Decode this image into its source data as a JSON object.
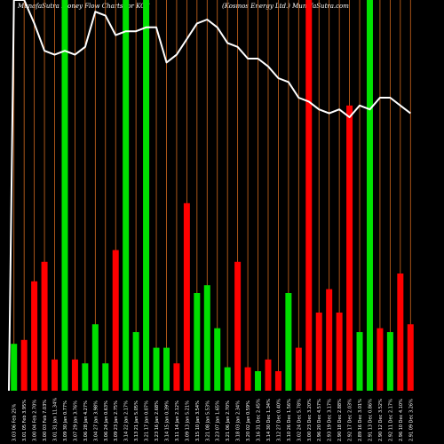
{
  "header": {
    "left": "MunafaSutra  Money Flow  Charts for KOS",
    "right": "(Kosmos Energy Ltd.) MunafaSutra.com"
  },
  "colors": {
    "background": "#000000",
    "up": "#00e000",
    "down": "#ff0000",
    "price_line": "#ffffff",
    "grid": "#d2691e"
  },
  "chart_data": {
    "type": "bar",
    "ylim": [
      0,
      100
    ],
    "categories": [
      "Thu 06 Feb 2025",
      "Wed 05 Feb 2025",
      "Tue 04 Feb 2025",
      "Mon 03 Feb 2025",
      "Fri 31 Jan 2025",
      "Thu 30 Jan 2025",
      "Wed 29 Jan 2025",
      "Tue 28 Jan 2025",
      "Mon 27 Jan 2025",
      "Fri 24 Jan 2025",
      "Thu 23 Jan 2025",
      "Wed 22 Jan 2025",
      "Tue 21 Jan 2025",
      "Fri 17 Jan 2025",
      "Thu 16 Jan 2025",
      "Wed 15 Jan 2025",
      "Tue 14 Jan 2025",
      "Mon 13 Jan 2025",
      "Fri 10 Jan 2025",
      "Wed 08 Jan 2025",
      "Tue 07 Jan 2025",
      "Mon 06 Jan 2025",
      "Fri 03 Jan 2025",
      "Thu 02 Jan 2025",
      "Tue 31 Dec 2024",
      "Mon 30 Dec 2024",
      "Fri 27 Dec 2024",
      "Thu 26 Dec 2024",
      "Tue 24 Dec 2024",
      "Mon 23 Dec 2024",
      "Fri 20 Dec 2024",
      "Thu 19 Dec 2024",
      "Wed 18 Dec 2024",
      "Tue 17 Dec 2024",
      "Mon 16 Dec 2024",
      "Fri 13 Dec 2024",
      "Thu 12 Dec 2024",
      "Wed 11 Dec 2024",
      "Tue 10 Dec 2024",
      "Mon 09 Dec 2024"
    ],
    "x_tick_labels": [
      "3.03 06 Feb 25%",
      "3.01 05 Feb 3.95%",
      "3.00 04 Feb 2.70%",
      "3.00 03 Feb 7.03%",
      "3.01 31 Jan 11.34%",
      "3.09 30 Jan 0.77%",
      "3.07 29 Jan 3.76%",
      "3.06 28 Jan 4.27%",
      "3.04 27 Jan 3.98%",
      "3.06 24 Jan 0.63%",
      "3.09 23 Jan 2.75%",
      "3.14 22 Jan 2.17%",
      "3.13 21 Jan 5.05%",
      "3.21 17 Jan 0.07%",
      "3.23 16 Jan 2.68%",
      "3.14 15 Jan 0.39%",
      "3.11 14 Jan 2.12%",
      "3.09 13 Jan 5.21%",
      "3.15 10 Jan 3.54%",
      "3.21 08 Jan 5.53%",
      "3.23 07 Jan 1.65%",
      "3.21 06 Jan 2.70%",
      "3.18 03 Jan 2.34%",
      "3.20 02 Jan 0.59%",
      "3.16 31 Dec 2.45%",
      "3.14 30 Dec 1.34%",
      "3.12 27 Dec 0.40%",
      "3.10 26 Dec 1.56%",
      "3.02 24 Dec 5.78%",
      "3.00 23 Dec 3.20%",
      "2.96 20 Dec 4.57%",
      "2.93 19 Dec 3.17%",
      "2.90 18 Dec 2.88%",
      "2.92 17 Dec 2.03%",
      "2.89 16 Dec 3.01%",
      "2.91 13 Dec 0.86%",
      "2.90 12 Dec 3.52%",
      "2.92 11 Dec 2.17%",
      "2.96 10 Dec 4.10%",
      "2.91 09 Dec 3.26%"
    ],
    "bar_values": [
      12,
      13,
      28,
      33,
      8,
      100,
      8,
      7,
      17,
      7,
      36,
      100,
      15,
      100,
      11,
      11,
      7,
      48,
      25,
      27,
      16,
      6,
      33,
      6,
      5,
      8,
      5,
      25,
      11,
      100,
      20,
      26,
      20,
      73,
      15,
      100,
      16,
      15,
      30,
      17
    ],
    "bar_colors": [
      "up",
      "down",
      "down",
      "down",
      "down",
      "up",
      "down",
      "up",
      "up",
      "up",
      "down",
      "up",
      "up",
      "up",
      "up",
      "up",
      "down",
      "down",
      "up",
      "up",
      "up",
      "up",
      "down",
      "down",
      "up",
      "down",
      "down",
      "up",
      "down",
      "down",
      "down",
      "down",
      "down",
      "down",
      "up",
      "up",
      "down",
      "up",
      "down",
      "down"
    ],
    "green_bar_indices": [
      0,
      5,
      7,
      8,
      9,
      11,
      12,
      13,
      14,
      15,
      18,
      19,
      20,
      21,
      24,
      27,
      34,
      35,
      37
    ],
    "price_line_values": [
      100,
      100,
      94,
      87,
      86,
      87,
      86,
      88,
      97,
      96,
      91,
      92,
      92,
      93,
      93,
      84,
      86,
      90,
      94,
      95,
      93,
      89,
      88,
      85,
      85,
      83,
      80,
      79,
      75,
      74,
      72,
      71,
      72,
      70,
      73,
      72,
      75,
      75,
      73,
      71
    ]
  }
}
